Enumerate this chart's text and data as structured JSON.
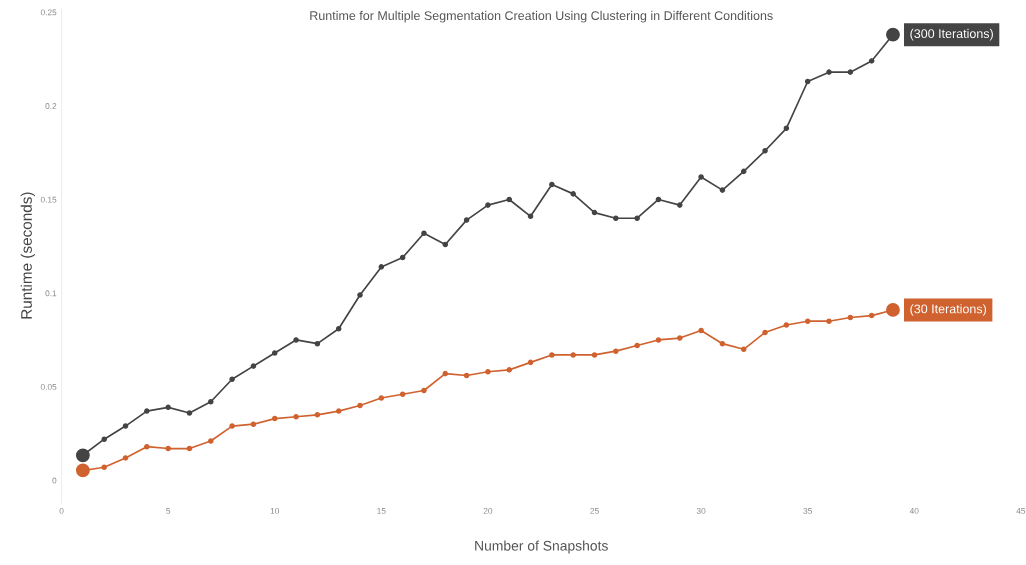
{
  "chart_data": {
    "type": "line",
    "title": "Runtime for Multiple Segmentation Creation Using Clustering in Different Conditions",
    "xlabel": "Number of Snapshots",
    "ylabel": "Runtime (seconds)",
    "x": [
      1,
      2,
      3,
      4,
      5,
      6,
      7,
      8,
      9,
      10,
      11,
      12,
      13,
      14,
      15,
      16,
      17,
      18,
      19,
      20,
      21,
      22,
      23,
      24,
      25,
      26,
      27,
      28,
      29,
      30,
      31,
      32,
      33,
      34,
      35,
      36,
      37,
      38,
      39
    ],
    "series": [
      {
        "name": "(300 Iterations)",
        "color": "#444444",
        "values": [
          0.0134,
          0.022,
          0.029,
          0.037,
          0.039,
          0.036,
          0.042,
          0.054,
          0.061,
          0.068,
          0.075,
          0.073,
          0.081,
          0.099,
          0.114,
          0.119,
          0.132,
          0.126,
          0.139,
          0.147,
          0.15,
          0.141,
          0.158,
          0.153,
          0.143,
          0.14,
          0.14,
          0.15,
          0.147,
          0.162,
          0.155,
          0.165,
          0.176,
          0.188,
          0.213,
          0.218,
          0.218,
          0.224,
          0.238
        ]
      },
      {
        "name": "(30 Iterations)",
        "color": "#d0622f",
        "values": [
          0.0053,
          0.007,
          0.012,
          0.018,
          0.017,
          0.017,
          0.021,
          0.029,
          0.03,
          0.033,
          0.034,
          0.035,
          0.037,
          0.04,
          0.044,
          0.046,
          0.048,
          0.057,
          0.056,
          0.058,
          0.059,
          0.063,
          0.067,
          0.067,
          0.067,
          0.069,
          0.072,
          0.075,
          0.076,
          0.08,
          0.073,
          0.07,
          0.079,
          0.083,
          0.085,
          0.085,
          0.087,
          0.088,
          0.091
        ]
      }
    ],
    "xlim": [
      0,
      45
    ],
    "xticks": [
      0,
      5,
      10,
      15,
      20,
      25,
      30,
      35,
      40,
      45
    ],
    "ylim": [
      -0.012,
      0.252
    ],
    "yticks": [
      0,
      0.05,
      0.1,
      0.15,
      0.2,
      0.25
    ],
    "grid": false,
    "legend": false,
    "marker": "circle",
    "line_style": "solid"
  }
}
